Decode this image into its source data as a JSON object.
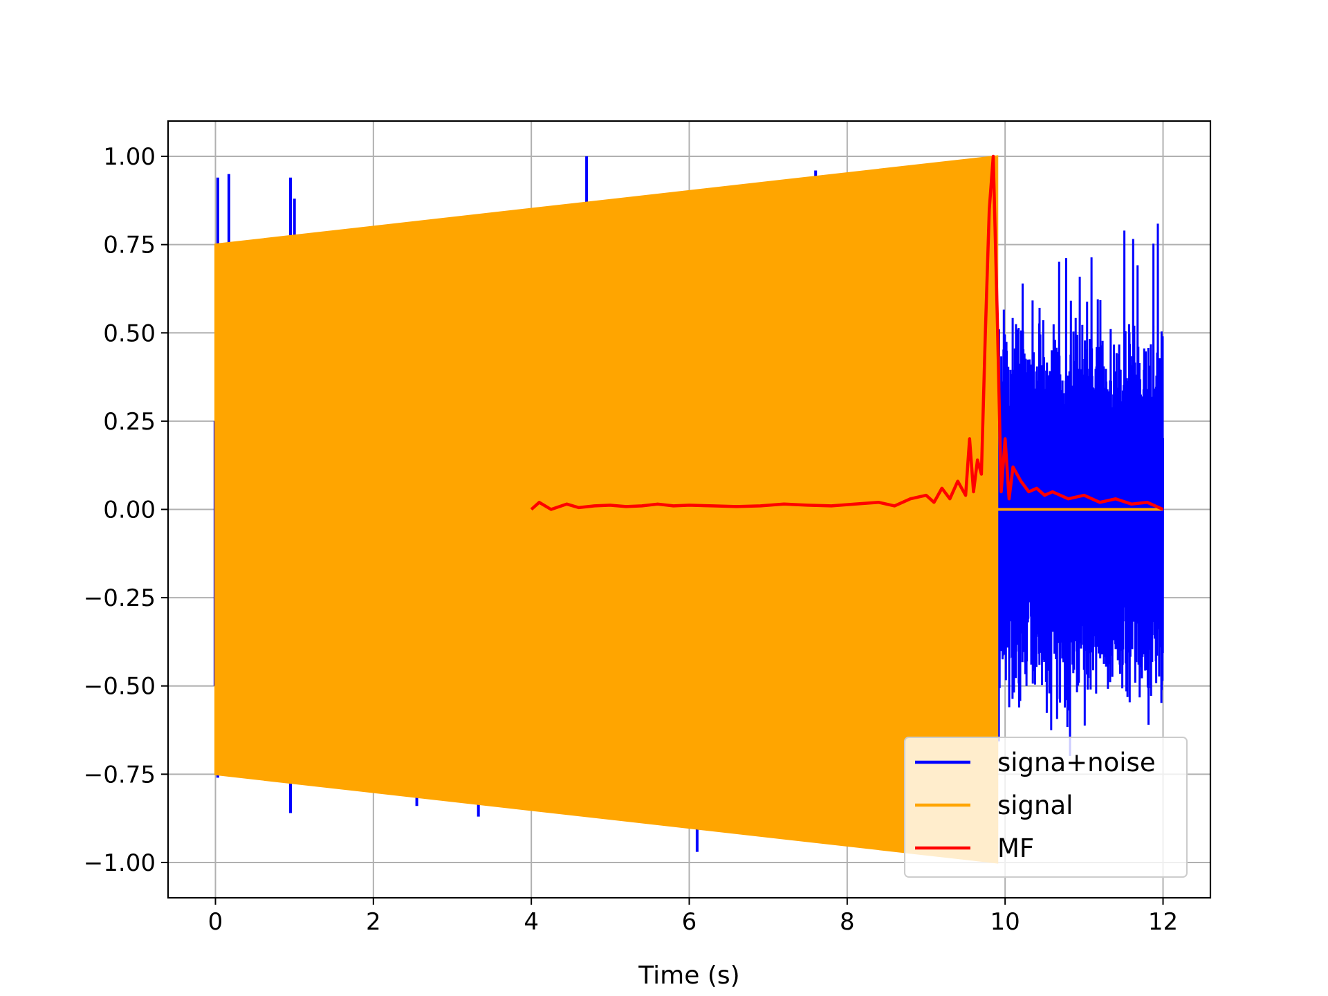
{
  "chart_data": {
    "type": "line",
    "title": "",
    "xlabel": "Time (s)",
    "ylabel": "",
    "xlim": [
      -0.6,
      12.6
    ],
    "ylim": [
      -1.1,
      1.1
    ],
    "xticks": [
      0,
      2,
      4,
      6,
      8,
      10,
      12
    ],
    "yticks": [
      -1.0,
      -0.75,
      -0.5,
      -0.25,
      0.0,
      0.25,
      0.5,
      0.75,
      1.0
    ],
    "xtick_labels": [
      "0",
      "2",
      "4",
      "6",
      "8",
      "10",
      "12"
    ],
    "ytick_labels": [
      "−1.00",
      "−0.75",
      "−0.50",
      "−0.25",
      "0.00",
      "0.25",
      "0.50",
      "0.75",
      "1.00"
    ],
    "grid": true,
    "legend_position": "bottom-right",
    "series": [
      {
        "name": "signa+noise",
        "color": "#0000ff",
        "description_values": {
          "active_range": [
            0,
            12
          ],
          "spikes": [
            {
              "x": 0.03,
              "y": 0.94
            },
            {
              "x": 0.17,
              "y": 0.95
            },
            {
              "x": 0.95,
              "y": 0.94
            },
            {
              "x": 1.0,
              "y": 0.88
            },
            {
              "x": 1.45,
              "y": 0.78
            },
            {
              "x": 3.6,
              "y": 0.84
            },
            {
              "x": 4.7,
              "y": 1.0
            },
            {
              "x": 7.6,
              "y": 0.96
            },
            {
              "x": 0.95,
              "y": -0.86
            },
            {
              "x": 2.55,
              "y": -0.84
            },
            {
              "x": 3.33,
              "y": -0.87
            },
            {
              "x": 6.1,
              "y": -0.97
            },
            {
              "x": 0.03,
              "y": -0.76
            }
          ],
          "noise_after_signal": {
            "x_start": 9.9,
            "x_end": 12.0,
            "y_min": -0.87,
            "y_max": 0.85
          }
        }
      },
      {
        "name": "signal",
        "color": "#ffa500",
        "envelope": {
          "x": [
            0,
            9.9
          ],
          "amplitude_start": 0.75,
          "amplitude_end": 1.0
        },
        "after_end_value": 0.0,
        "after_end_range": [
          9.9,
          12.0
        ]
      },
      {
        "name": "MF",
        "color": "#ff0000",
        "x": [
          4.0,
          4.1,
          4.25,
          4.45,
          4.6,
          4.8,
          5.0,
          5.2,
          5.4,
          5.6,
          5.8,
          6.0,
          6.3,
          6.6,
          6.9,
          7.2,
          7.5,
          7.8,
          8.1,
          8.4,
          8.6,
          8.8,
          9.0,
          9.1,
          9.2,
          9.3,
          9.4,
          9.5,
          9.55,
          9.6,
          9.65,
          9.7,
          9.75,
          9.8,
          9.85,
          9.9,
          9.95,
          10.0,
          10.05,
          10.1,
          10.2,
          10.3,
          10.4,
          10.5,
          10.6,
          10.8,
          11.0,
          11.2,
          11.4,
          11.6,
          11.8,
          12.0
        ],
        "y": [
          0.0,
          0.02,
          0.0,
          0.015,
          0.005,
          0.01,
          0.012,
          0.008,
          0.01,
          0.015,
          0.01,
          0.012,
          0.01,
          0.008,
          0.01,
          0.015,
          0.012,
          0.01,
          0.015,
          0.02,
          0.01,
          0.03,
          0.04,
          0.02,
          0.06,
          0.03,
          0.08,
          0.04,
          0.2,
          0.05,
          0.14,
          0.1,
          0.5,
          0.85,
          1.0,
          0.55,
          0.05,
          0.2,
          0.03,
          0.12,
          0.08,
          0.05,
          0.06,
          0.04,
          0.05,
          0.03,
          0.04,
          0.02,
          0.03,
          0.015,
          0.02,
          0.0
        ]
      }
    ]
  }
}
